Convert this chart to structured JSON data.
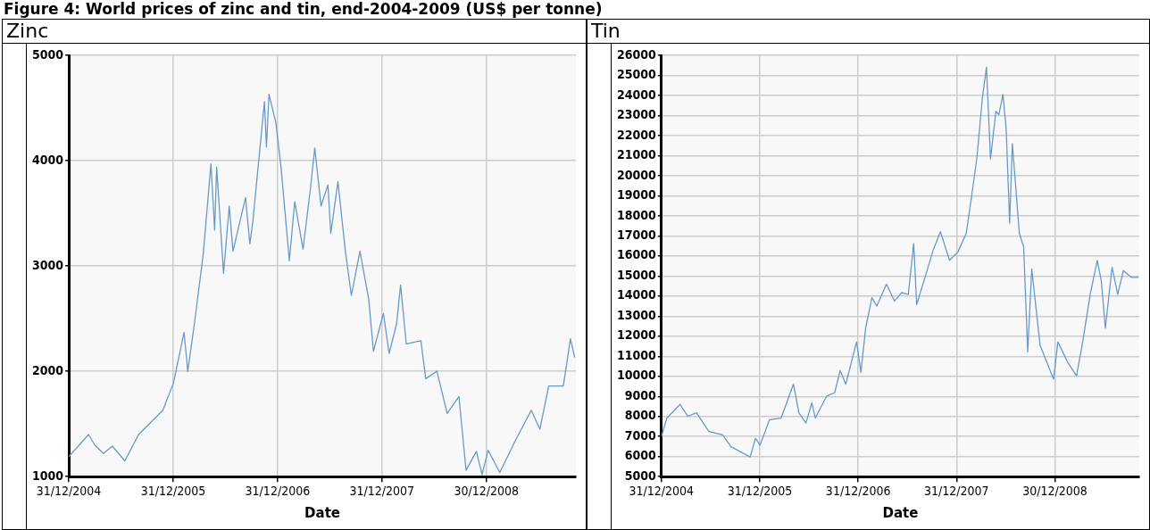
{
  "chart_data": [
    {
      "type": "line",
      "title": "Zinc",
      "xlabel": "Date",
      "annotations": [
        "Figure 4: World prices of zinc and tin, end-2004-2009 (US$ per tonne)"
      ],
      "x": [
        "2004-12-31",
        "2005-03-10",
        "2005-04-01",
        "2005-05-01",
        "2005-06-01",
        "2005-07-15",
        "2005-09-01",
        "2005-11-25",
        "2006-01-01",
        "2006-02-07",
        "2006-02-20",
        "2006-03-15",
        "2006-04-15",
        "2006-05-12",
        "2006-05-25",
        "2006-06-01",
        "2006-06-25",
        "2006-07-15",
        "2006-07-28",
        "2006-09-10",
        "2006-09-25",
        "2006-10-05",
        "2006-10-25",
        "2006-11-15",
        "2006-11-22",
        "2006-12-01",
        "2006-12-25",
        "2007-01-12",
        "2007-02-10",
        "2007-03-01",
        "2007-03-30",
        "2007-04-25",
        "2007-05-10",
        "2007-06-01",
        "2007-06-25",
        "2007-07-05",
        "2007-07-30",
        "2007-08-25",
        "2007-09-15",
        "2007-10-15",
        "2007-11-15",
        "2007-12-01",
        "2008-01-05",
        "2008-01-25",
        "2008-02-20",
        "2008-03-05",
        "2008-03-25",
        "2008-05-15",
        "2008-06-01",
        "2008-07-10",
        "2008-08-15",
        "2008-09-25",
        "2008-10-20",
        "2008-11-25",
        "2008-12-15",
        "2009-01-05",
        "2009-02-15",
        "2009-04-10",
        "2009-06-05",
        "2009-07-05",
        "2009-08-05",
        "2009-09-25",
        "2009-10-20",
        "2009-11-04"
      ],
      "series": [
        {
          "color": "#6699cc",
          "values": [
            1190,
            1400,
            1300,
            1220,
            1290,
            1150,
            1400,
            1630,
            1890,
            2370,
            2000,
            2450,
            3110,
            3970,
            3340,
            3940,
            2930,
            3570,
            3140,
            3650,
            3210,
            3410,
            3970,
            4560,
            4130,
            4630,
            4360,
            3940,
            3050,
            3610,
            3160,
            3740,
            4120,
            3570,
            3770,
            3310,
            3800,
            3140,
            2720,
            3140,
            2680,
            2190,
            2550,
            2170,
            2450,
            2820,
            2260,
            2290,
            1930,
            2000,
            1600,
            1760,
            1060,
            1240,
            1020,
            1250,
            1040,
            1340,
            1630,
            1450,
            1860,
            1860,
            2310,
            2130
          ]
        }
      ],
      "xlim": [
        "2004-12-31",
        "2009-11-08"
      ],
      "xticks": [
        {
          "value": "2004-12-31",
          "label": "31/12/2004"
        },
        {
          "value": "2005-12-31",
          "label": "31/12/2005"
        },
        {
          "value": "2006-12-31",
          "label": "31/12/2006"
        },
        {
          "value": "2007-12-31",
          "label": "31/12/2007"
        },
        {
          "value": "2008-12-30",
          "label": "30/12/2008"
        }
      ],
      "ylim": [
        1000,
        5000
      ],
      "yticks": [
        1000,
        2000,
        3000,
        4000,
        5000
      ],
      "grid": true,
      "legend": false,
      "marker": "none",
      "line_style": "solid"
    },
    {
      "type": "line",
      "title": "Tin",
      "xlabel": "Date",
      "x": [
        "2004-12-31",
        "2005-01-20",
        "2005-03-10",
        "2005-04-08",
        "2005-05-10",
        "2005-06-25",
        "2005-08-15",
        "2005-09-15",
        "2005-11-25",
        "2005-12-15",
        "2006-01-01",
        "2006-02-05",
        "2006-03-20",
        "2006-05-05",
        "2006-05-25",
        "2006-06-20",
        "2006-07-12",
        "2006-07-25",
        "2006-09-05",
        "2006-10-05",
        "2006-10-25",
        "2006-11-15",
        "2006-12-25",
        "2007-01-10",
        "2007-01-28",
        "2007-02-20",
        "2007-03-10",
        "2007-04-15",
        "2007-05-15",
        "2007-06-10",
        "2007-07-05",
        "2007-07-25",
        "2007-08-05",
        "2007-09-05",
        "2007-10-05",
        "2007-11-01",
        "2007-12-05",
        "2008-01-05",
        "2008-02-05",
        "2008-02-25",
        "2008-03-15",
        "2008-04-05",
        "2008-04-20",
        "2008-05-05",
        "2008-05-25",
        "2008-06-05",
        "2008-06-20",
        "2008-07-02",
        "2008-07-15",
        "2008-07-25",
        "2008-08-20",
        "2008-09-05",
        "2008-09-20",
        "2008-10-05",
        "2008-11-05",
        "2008-12-25",
        "2009-01-10",
        "2009-02-15",
        "2009-03-20",
        "2009-04-10",
        "2009-05-10",
        "2009-06-05",
        "2009-06-20",
        "2009-07-05",
        "2009-07-30",
        "2009-08-20",
        "2009-09-10",
        "2009-10-10",
        "2009-11-05"
      ],
      "series": [
        {
          "color": "#6699cc",
          "values": [
            7000,
            7920,
            8600,
            8010,
            8180,
            7250,
            7080,
            6490,
            5980,
            6910,
            6570,
            7840,
            7920,
            9610,
            8180,
            7670,
            8680,
            7920,
            9020,
            9190,
            10290,
            9610,
            11720,
            10200,
            12430,
            13920,
            13500,
            14590,
            13750,
            14170,
            14090,
            16620,
            13580,
            14930,
            16280,
            17210,
            15780,
            16200,
            17130,
            18990,
            20840,
            23890,
            25410,
            20840,
            23210,
            23040,
            24050,
            22360,
            17640,
            21600,
            17130,
            16450,
            11220,
            15350,
            11550,
            9860,
            11720,
            10710,
            10030,
            11550,
            14090,
            15780,
            14760,
            12400,
            15440,
            14090,
            15270,
            14930,
            14930
          ]
        }
      ],
      "xlim": [
        "2004-12-31",
        "2009-11-08"
      ],
      "xticks": [
        {
          "value": "2004-12-31",
          "label": "31/12/2004"
        },
        {
          "value": "2005-12-31",
          "label": "31/12/2005"
        },
        {
          "value": "2006-12-31",
          "label": "31/12/2006"
        },
        {
          "value": "2007-12-31",
          "label": "31/12/2007"
        },
        {
          "value": "2008-12-30",
          "label": "30/12/2008"
        }
      ],
      "ylim": [
        5000,
        26000
      ],
      "yticks": [
        5000,
        6000,
        7000,
        8000,
        9000,
        10000,
        11000,
        12000,
        13000,
        14000,
        15000,
        16000,
        17000,
        18000,
        19000,
        20000,
        21000,
        22000,
        23000,
        24000,
        25000,
        26000
      ],
      "grid": true,
      "legend": false,
      "marker": "none",
      "line_style": "solid"
    }
  ]
}
